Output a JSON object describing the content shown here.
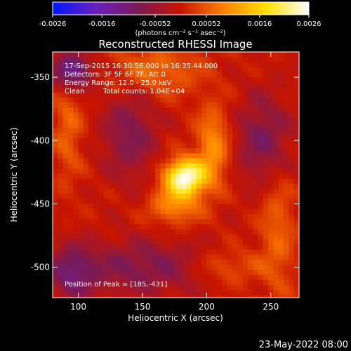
{
  "colorbar": {
    "ticks": [
      "-0.0026",
      "-0.0016",
      "-0.00052",
      "0.00052",
      "0.0016",
      "0.0026"
    ],
    "tick_values": [
      -0.0026,
      -0.0016,
      -0.00052,
      0.00052,
      0.0016,
      0.0026
    ],
    "range": [
      -0.0026,
      0.0026
    ],
    "units_label": "(photons cm⁻² s⁻¹ asec⁻²)",
    "colors": [
      "#0018ff",
      "#6a1fc0",
      "#7a1a55",
      "#c81400",
      "#ff8000",
      "#ffe000",
      "#ffffff"
    ]
  },
  "chart_data": {
    "type": "heatmap",
    "title": "Reconstructed RHESSI Image",
    "xlabel": "Heliocentric X (arcsec)",
    "ylabel": "Heliocentric Y (arcsec)",
    "xlim": [
      80,
      272
    ],
    "ylim": [
      -524,
      -330
    ],
    "xticks": [
      100,
      150,
      200,
      250
    ],
    "yticks": [
      -350,
      -400,
      -450,
      -500
    ],
    "annotations": {
      "time_range": "17-Sep-2015 16:30:56.000 to 16:35:44.000",
      "detectors": "Detectors: 3F 5F 6F 7F, Att 0",
      "energy": "Energy Range: 12.0 - 25.0 keV",
      "method": "Clean",
      "counts": "Total counts: 1.04E+04",
      "peak": "Position of Peak = [185,-431]"
    },
    "peak": {
      "x": 185,
      "y": -431
    },
    "sources": [
      {
        "x": 183,
        "y": -429,
        "sx": 11,
        "sy": 10,
        "amp": 0.0026
      },
      {
        "x": 205,
        "y": -405,
        "sx": 9,
        "sy": 22,
        "amp": 0.001
      },
      {
        "x": 175,
        "y": -452,
        "sx": 14,
        "sy": 10,
        "amp": 0.0009
      },
      {
        "x": 160,
        "y": -345,
        "sx": 25,
        "sy": 14,
        "amp": 0.0007
      },
      {
        "x": 92,
        "y": -390,
        "sx": 8,
        "sy": 30,
        "amp": 0.0006
      },
      {
        "x": 255,
        "y": -470,
        "sx": 10,
        "sy": 40,
        "amp": 0.0006
      },
      {
        "x": 215,
        "y": -500,
        "sx": 20,
        "sy": 10,
        "amp": 0.0006
      },
      {
        "x": 95,
        "y": -345,
        "sx": 10,
        "sy": 10,
        "amp": -0.0016
      },
      {
        "x": 140,
        "y": -395,
        "sx": 15,
        "sy": 25,
        "amp": -0.0008
      },
      {
        "x": 245,
        "y": -400,
        "sx": 15,
        "sy": 25,
        "amp": -0.0009
      },
      {
        "x": 150,
        "y": -500,
        "sx": 40,
        "sy": 15,
        "amp": -0.0008
      },
      {
        "x": 95,
        "y": -505,
        "sx": 12,
        "sy": 15,
        "amp": -0.0009
      }
    ]
  },
  "footer": {
    "date": "23-May-2022 08:00"
  }
}
